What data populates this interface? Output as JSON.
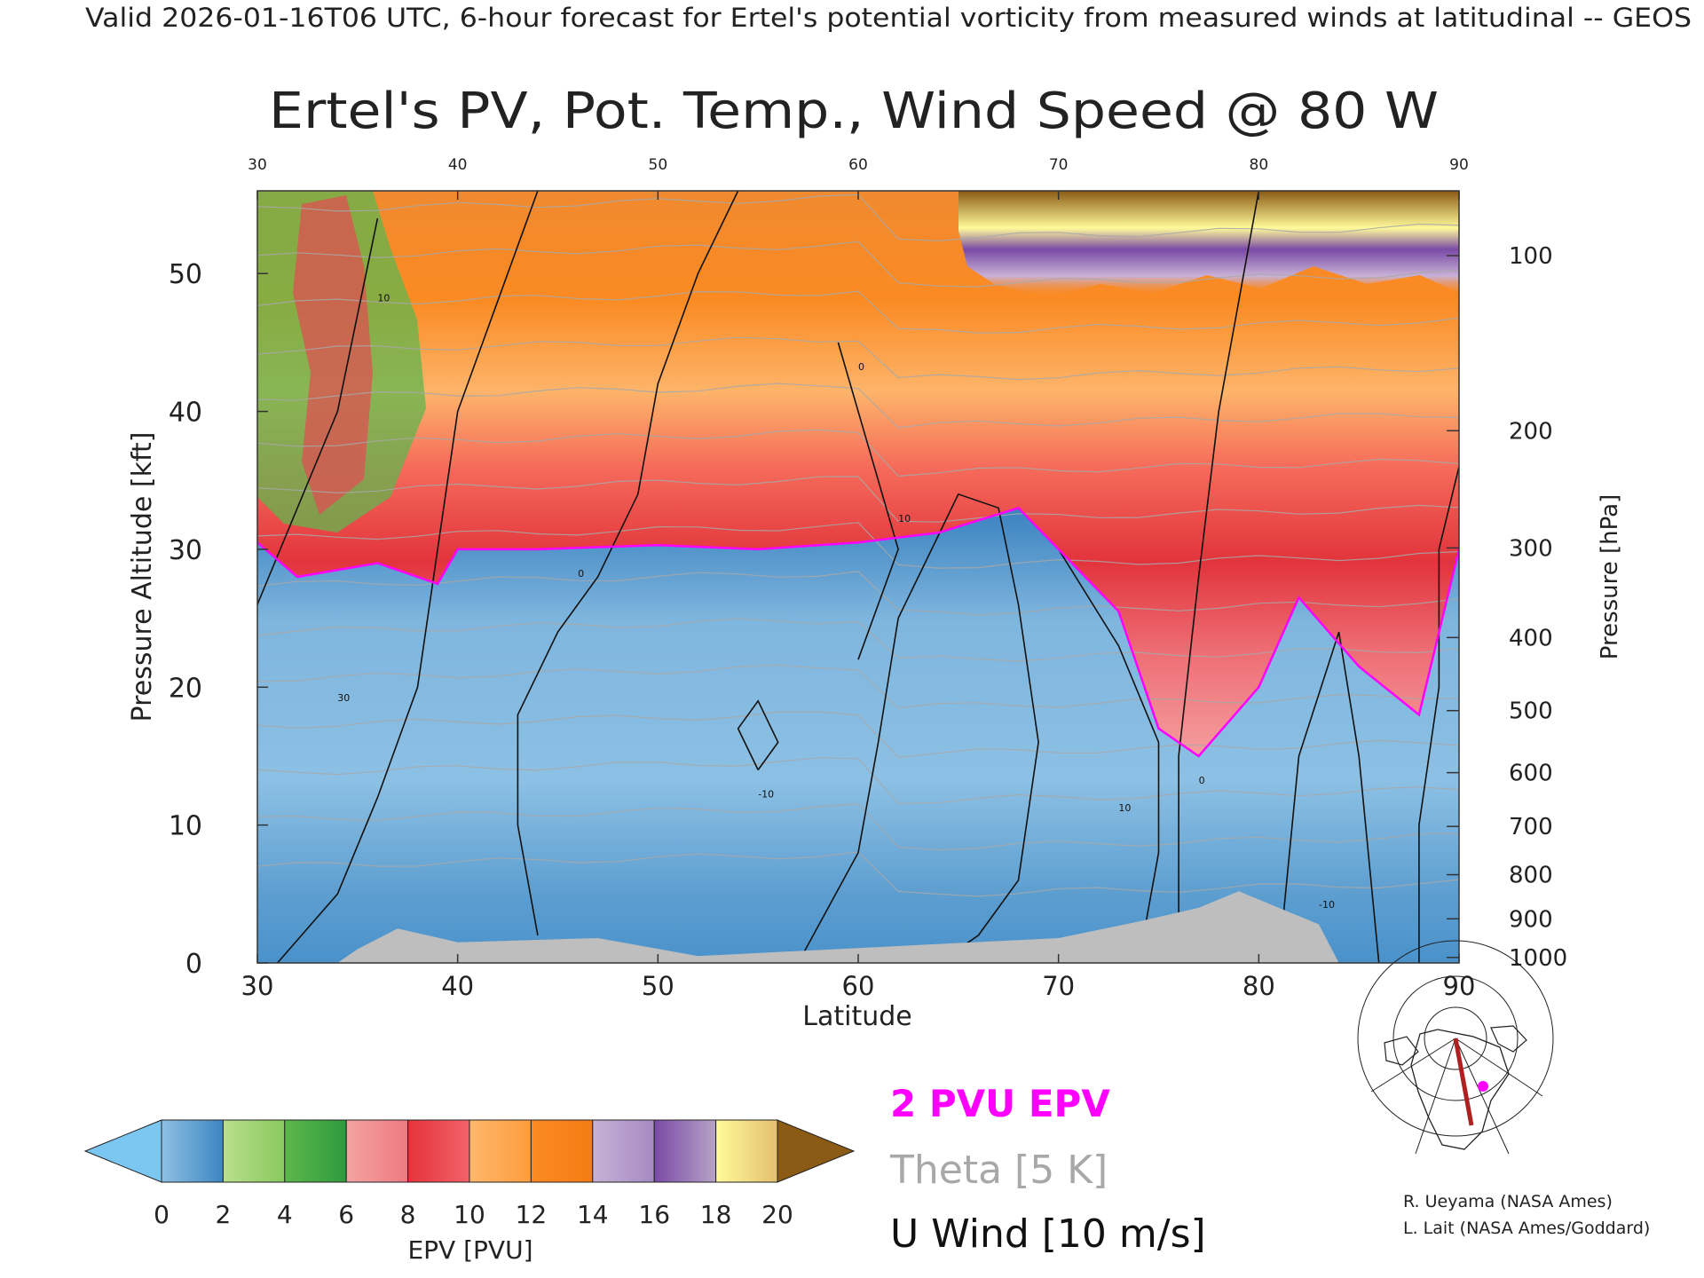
{
  "header": {
    "valid_line": "Valid 2026-01-16T06 UTC, 6-hour forecast for Ertel's potential vorticity from measured winds at latitudinal -- GEOS"
  },
  "chart_data": {
    "type": "heatmap",
    "title": "Ertel's PV, Pot. Temp., Wind Speed @ 80 W",
    "xlabel": "Latitude",
    "ylabel_left": "Pressure Altitude [kft]",
    "ylabel_right": "Pressure [hPa]",
    "xlim": [
      30,
      90
    ],
    "ylim": [
      0,
      56
    ],
    "x_ticks_bottom": [
      "30",
      "40",
      "50",
      "60",
      "70",
      "80",
      "90"
    ],
    "x_ticks_top": [
      "30",
      "40",
      "50",
      "60",
      "70",
      "80",
      "90"
    ],
    "y_ticks_left": [
      "0",
      "10",
      "20",
      "30",
      "40",
      "50"
    ],
    "pressure_ticks": [
      {
        "label": "100",
        "kft": 51.3
      },
      {
        "label": "200",
        "kft": 38.6
      },
      {
        "label": "300",
        "kft": 30.1
      },
      {
        "label": "400",
        "kft": 23.6
      },
      {
        "label": "500",
        "kft": 18.3
      },
      {
        "label": "600",
        "kft": 13.8
      },
      {
        "label": "700",
        "kft": 9.9
      },
      {
        "label": "800",
        "kft": 6.4
      },
      {
        "label": "900",
        "kft": 3.2
      },
      {
        "label": "1000",
        "kft": 0.4
      }
    ],
    "tropopause_2pvu_kft": [
      {
        "lat": 30,
        "kft": 30.5
      },
      {
        "lat": 32,
        "kft": 28.0
      },
      {
        "lat": 36,
        "kft": 29.0
      },
      {
        "lat": 39,
        "kft": 27.5
      },
      {
        "lat": 40,
        "kft": 30.0
      },
      {
        "lat": 44,
        "kft": 30.0
      },
      {
        "lat": 50,
        "kft": 30.3
      },
      {
        "lat": 55,
        "kft": 30.0
      },
      {
        "lat": 60,
        "kft": 30.5
      },
      {
        "lat": 64,
        "kft": 31.2
      },
      {
        "lat": 68,
        "kft": 33.0
      },
      {
        "lat": 70,
        "kft": 30.0
      },
      {
        "lat": 73,
        "kft": 25.5
      },
      {
        "lat": 75,
        "kft": 17.0
      },
      {
        "lat": 77,
        "kft": 15.0
      },
      {
        "lat": 80,
        "kft": 20.0
      },
      {
        "lat": 82,
        "kft": 26.5
      },
      {
        "lat": 85,
        "kft": 21.5
      },
      {
        "lat": 88,
        "kft": 18.0
      },
      {
        "lat": 90,
        "kft": 30.0
      }
    ],
    "surface_terrain_kft": [
      {
        "lat": 34,
        "kft": 0
      },
      {
        "lat": 35,
        "kft": 1.0
      },
      {
        "lat": 37,
        "kft": 2.5
      },
      {
        "lat": 40,
        "kft": 1.5
      },
      {
        "lat": 47,
        "kft": 1.8
      },
      {
        "lat": 52,
        "kft": 0.5
      },
      {
        "lat": 70,
        "kft": 1.8
      },
      {
        "lat": 74,
        "kft": 3.0
      },
      {
        "lat": 77,
        "kft": 4.0
      },
      {
        "lat": 79,
        "kft": 5.2
      },
      {
        "lat": 81,
        "kft": 4.0
      },
      {
        "lat": 83,
        "kft": 2.8
      },
      {
        "lat": 84,
        "kft": 0
      }
    ],
    "theta_isentropes_K": [
      290,
      300,
      310,
      320,
      330,
      340,
      350,
      360,
      370,
      380,
      390,
      400,
      410,
      420,
      430
    ],
    "u_wind_contour_labels": [
      "10",
      "30",
      "0",
      "-10",
      "10",
      "0",
      "10",
      "0",
      "-10"
    ]
  },
  "colorbar": {
    "label": "EPV [PVU]",
    "ticks": [
      "0",
      "2",
      "4",
      "6",
      "8",
      "10",
      "12",
      "14",
      "16",
      "18",
      "20"
    ],
    "bands": [
      {
        "from": 0,
        "to": 2,
        "colors": [
          "#8fc0e4",
          "#3d86c2"
        ]
      },
      {
        "from": 2,
        "to": 4,
        "colors": [
          "#b9df8c",
          "#8ac95e"
        ]
      },
      {
        "from": 4,
        "to": 6,
        "colors": [
          "#5db84a",
          "#2e9a3e"
        ]
      },
      {
        "from": 6,
        "to": 8,
        "colors": [
          "#f3a3a3",
          "#ee7a80"
        ]
      },
      {
        "from": 8,
        "to": 10,
        "colors": [
          "#e5333b",
          "#f2626a"
        ]
      },
      {
        "from": 10,
        "to": 12,
        "colors": [
          "#fdb86b",
          "#fd9c3d"
        ]
      },
      {
        "from": 12,
        "to": 14,
        "colors": [
          "#fb8a22",
          "#f57c13"
        ]
      },
      {
        "from": 14,
        "to": 16,
        "colors": [
          "#c8b1d6",
          "#a58ac2"
        ]
      },
      {
        "from": 16,
        "to": 18,
        "colors": [
          "#7a4aa6",
          "#b7a3c6"
        ]
      },
      {
        "from": 18,
        "to": 20,
        "colors": [
          "#fffa9a",
          "#e4c070"
        ]
      }
    ],
    "under_color": "#7cc6f2",
    "over_color": "#8b5a14"
  },
  "legend": {
    "epv_label": "2 PVU EPV",
    "theta_label": "Theta [5 K]",
    "wind_label": "U Wind [10 m/s]",
    "epv_color": "#ff00ff",
    "theta_color": "#a8a8a8",
    "wind_color": "#111111"
  },
  "credits": {
    "line1": "R. Ueyama (NASA Ames)",
    "line2": "L. Lait (NASA Ames/Goddard)"
  },
  "inset_map": {
    "track_color": "#b02020",
    "marker_color": "#ff00ff"
  }
}
